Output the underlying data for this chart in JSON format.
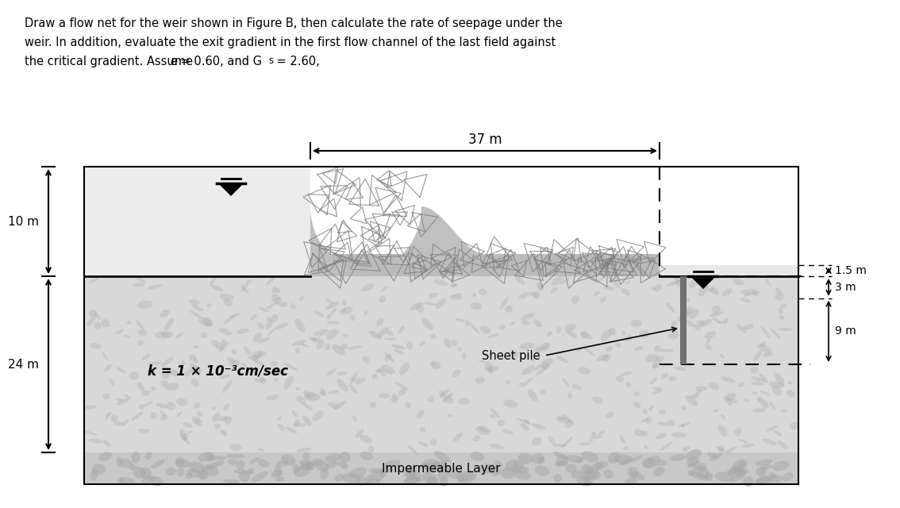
{
  "bg_color": "#ffffff",
  "soil_color": "#d2d2d2",
  "soil_color_darker": "#c0c0c0",
  "impermeable_color": "#c8c8c8",
  "water_left_color": "#e8e8e8",
  "water_right_color": "#e0e0e0",
  "weir_color": "#c0c0c0",
  "weir_base_color": "#b8b8b8",
  "sheet_pile_color": "#808080",
  "dim_37m": "37 m",
  "dim_10m": "10 m",
  "dim_24m": "24 m",
  "dim_1_5m": "1.5 m",
  "dim_3m": "3 m",
  "dim_9m": "9 m",
  "label_sheet_pile": "Sheet pile",
  "label_k": "k = 1 × 10⁻³cm/sec",
  "label_impermeable": "Impermeable Layer",
  "title_line1": "Draw a flow net for the weir shown in Figure B, then calculate the rate of seepage under the",
  "title_line2": "weir. In addition, evaluate the exit gradient in the first flow channel of the last field against",
  "title_line3_pre": "the critical gradient. Assume ",
  "title_line3_e": "e",
  "title_line3_mid": " = 0.60, and G",
  "title_line3_sub": "s",
  "title_line3_post": " = 2.60,"
}
